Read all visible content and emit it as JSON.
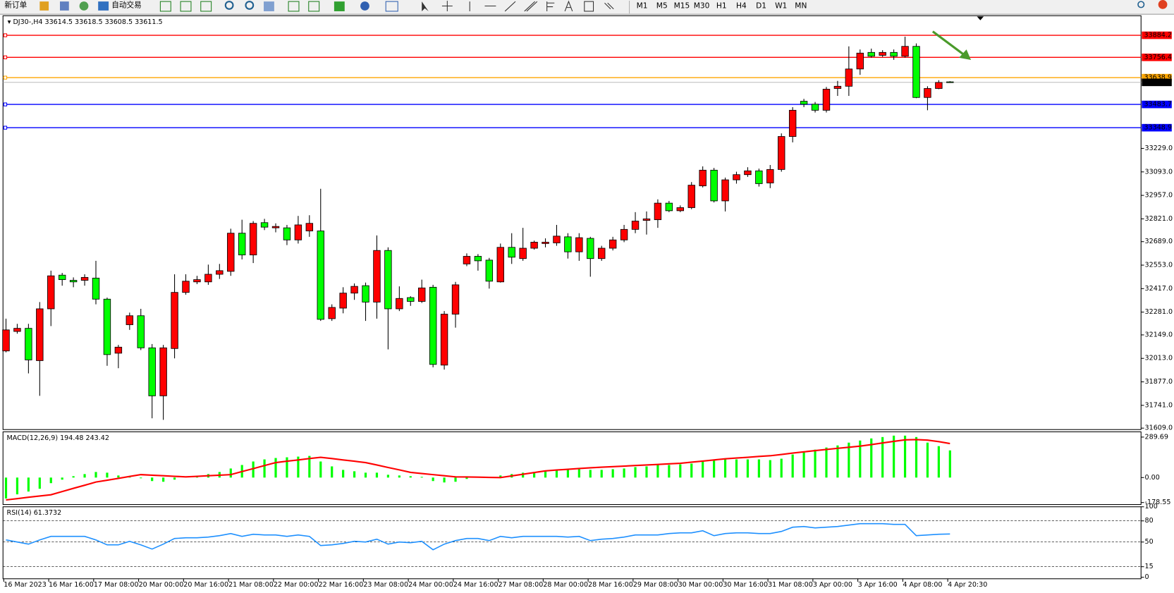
{
  "toolbar": {
    "new_order": "新订单",
    "auto_trading": "自动交易",
    "timeframes": [
      "M1",
      "M5",
      "M15",
      "M30",
      "H1",
      "H4",
      "D1",
      "W1",
      "MN"
    ]
  },
  "chart_data": [
    {
      "type": "candlestick",
      "symbol": "DJ30-,H4",
      "categories": [
        "16 Mar 2023",
        null,
        null,
        null,
        "16 Mar 16:00",
        null,
        null,
        null,
        "17 Mar 08:00",
        null,
        null,
        null,
        "20 Mar 00:00",
        null,
        null,
        null,
        "20 Mar 16:00",
        null,
        null,
        null,
        "21 Mar 08:00",
        null,
        null,
        null,
        "22 Mar 00:00",
        null,
        null,
        null,
        "22 Mar 16:00",
        null,
        null,
        null,
        "23 Mar 08:00",
        null,
        null,
        null,
        "24 Mar 00:00",
        null,
        null,
        null,
        "24 Mar 16:00",
        null,
        null,
        null,
        "27 Mar 08:00",
        null,
        null,
        null,
        "28 Mar 00:00",
        null,
        null,
        null,
        "28 Mar 16:00",
        null,
        null,
        null,
        "29 Mar 08:00",
        null,
        null,
        null,
        "30 Mar 00:00",
        null,
        null,
        null,
        "30 Mar 16:00",
        null,
        null,
        null,
        "31 Mar 08:00",
        null,
        null,
        null,
        "3 Apr 00:00",
        null,
        null,
        null,
        "3 Apr 16:00",
        null,
        null,
        null,
        "4 Apr 08:00",
        null,
        null,
        null,
        "4 Apr 20:30"
      ],
      "open": [
        32056,
        32169,
        32187,
        32000,
        32300,
        32495,
        32465,
        32465,
        32478,
        32356,
        32043,
        32208,
        32260,
        32074,
        31796,
        32070,
        32395,
        32456,
        32456,
        32500,
        32517,
        32738,
        32612,
        32799,
        32769,
        32769,
        32699,
        32751,
        32751,
        32243,
        32304,
        32391,
        32434,
        32339,
        32638,
        32300,
        32365,
        32343,
        32425,
        31974,
        32269,
        32560,
        32604,
        32582,
        32456,
        32656,
        32591,
        32651,
        32678,
        32682,
        32717,
        32630,
        32708,
        32591,
        32651,
        32699,
        32760,
        32812,
        32816,
        32912,
        32868,
        32886,
        33012,
        33103,
        32925,
        33047,
        33077,
        33099,
        33029,
        33107,
        33298,
        33502,
        33485,
        33450,
        33576,
        33589,
        33689,
        33785,
        33768,
        33785,
        33763,
        33820,
        33524,
        33576,
        33614.5
      ],
      "high": [
        32243,
        32213,
        32213,
        32339,
        32521,
        32508,
        32482,
        32500,
        32578,
        32365,
        32091,
        32278,
        32300,
        32096,
        32091,
        32500,
        32500,
        32491,
        32556,
        32560,
        32764,
        32816,
        32808,
        32821,
        32795,
        32786,
        32838,
        32842,
        32995,
        32326,
        32425,
        32447,
        32452,
        32725,
        32656,
        32430,
        32373,
        32469,
        32439,
        32287,
        32456,
        32621,
        32617,
        32595,
        32678,
        32738,
        32769,
        32695,
        32708,
        32786,
        32738,
        32738,
        32717,
        32665,
        32717,
        32786,
        32860,
        32864,
        32934,
        32925,
        32899,
        33034,
        33125,
        33116,
        33060,
        33094,
        33120,
        33112,
        33133,
        33316,
        33468,
        33516,
        33498,
        33585,
        33620,
        33820,
        33802,
        33807,
        33798,
        33802,
        33876,
        33837,
        33589,
        33624,
        33618.5
      ],
      "low": [
        32048,
        32156,
        31926,
        31796,
        32200,
        32434,
        32425,
        32434,
        32326,
        31970,
        31956,
        32178,
        32061,
        31666,
        31657,
        32013,
        32382,
        32443,
        32439,
        32473,
        32491,
        32586,
        32565,
        32756,
        32743,
        32669,
        32678,
        32717,
        32230,
        32230,
        32274,
        32352,
        32230,
        32243,
        32065,
        32287,
        32317,
        32334,
        31961,
        31948,
        32191,
        32547,
        32521,
        32417,
        32452,
        32560,
        32578,
        32643,
        32656,
        32665,
        32591,
        32578,
        32486,
        32578,
        32638,
        32686,
        32738,
        32730,
        32769,
        32860,
        32860,
        32877,
        33003,
        32916,
        32864,
        33025,
        33064,
        33008,
        32999,
        33094,
        33264,
        33468,
        33437,
        33437,
        33533,
        33533,
        33655,
        33755,
        33759,
        33742,
        33755,
        33520,
        33450,
        33572,
        33608.5
      ],
      "close": [
        32178,
        32187,
        32004,
        32300,
        32491,
        32469,
        32456,
        32482,
        32356,
        32035,
        32078,
        32260,
        32074,
        31796,
        32074,
        32395,
        32460,
        32469,
        32500,
        32521,
        32738,
        32612,
        32795,
        32773,
        32777,
        32699,
        32786,
        32795,
        32239,
        32308,
        32391,
        32430,
        32339,
        32638,
        32300,
        32360,
        32343,
        32421,
        31978,
        32269,
        32439,
        32604,
        32578,
        32460,
        32656,
        32599,
        32651,
        32686,
        32686,
        32721,
        32630,
        32712,
        32591,
        32651,
        32699,
        32760,
        32808,
        32821,
        32912,
        32868,
        32886,
        33016,
        33103,
        32925,
        33047,
        33077,
        33099,
        33025,
        33107,
        33298,
        33450,
        33485,
        33450,
        33572,
        33589,
        33689,
        33781,
        33763,
        33785,
        33763,
        33820,
        33524,
        33576,
        33611,
        33611.5
      ],
      "up_color": "#ff0000",
      "down_color": "#00ff00",
      "ylim": [
        31605,
        33993
      ],
      "yticks": [
        {
          "value": 33229,
          "label": "33229.0"
        },
        {
          "value": 33093,
          "label": "33093.0"
        },
        {
          "value": 32957,
          "label": "32957.0"
        },
        {
          "value": 32821,
          "label": "32821.0"
        },
        {
          "value": 32689,
          "label": "32689.0"
        },
        {
          "value": 32553,
          "label": "32553.0"
        },
        {
          "value": 32417,
          "label": "32417.0"
        },
        {
          "value": 32281,
          "label": "32281.0"
        },
        {
          "value": 32149,
          "label": "32149.0"
        },
        {
          "value": 32013,
          "label": "32013.0"
        },
        {
          "value": 31877,
          "label": "31877.0"
        },
        {
          "value": 31741,
          "label": "31741.0"
        },
        {
          "value": 31609,
          "label": "31609.0"
        }
      ],
      "levels": [
        {
          "value": 33884.2,
          "color": "#ff0000"
        },
        {
          "value": 33756.4,
          "color": "#ff0000"
        },
        {
          "value": 33638.9,
          "color": "#ffa500"
        },
        {
          "value": 33483.7,
          "color": "#0000ff"
        },
        {
          "value": 33348.9,
          "color": "#0000ff"
        }
      ]
    },
    {
      "type": "macd",
      "name": "MACD(12,26,9)",
      "values": [
        -150,
        -120,
        -100,
        -80,
        -40,
        -15,
        10,
        25,
        40,
        35,
        15,
        5,
        -5,
        -25,
        -30,
        -15,
        0,
        10,
        25,
        40,
        65,
        90,
        115,
        130,
        140,
        145,
        150,
        155,
        115,
        80,
        55,
        45,
        35,
        35,
        20,
        15,
        10,
        5,
        -25,
        -35,
        -30,
        -10,
        5,
        5,
        15,
        25,
        35,
        40,
        45,
        55,
        55,
        60,
        55,
        55,
        60,
        65,
        75,
        80,
        90,
        90,
        95,
        100,
        120,
        130,
        130,
        130,
        130,
        130,
        125,
        135,
        165,
        180,
        200,
        215,
        230,
        250,
        265,
        280,
        290,
        300,
        300,
        290,
        250,
        225,
        194.48
      ],
      "signal": [
        -160,
        -151,
        -141,
        -132,
        -123,
        -100,
        -77,
        -55,
        -32,
        -19,
        -6,
        8,
        21,
        17,
        13,
        9,
        5,
        9,
        13,
        17,
        21,
        43,
        64,
        86,
        107,
        117,
        126,
        136,
        145,
        136,
        126,
        117,
        107,
        90,
        72,
        55,
        37,
        29,
        21,
        13,
        5,
        4,
        3,
        1,
        0,
        12,
        24,
        36,
        48,
        54,
        59,
        65,
        70,
        74,
        78,
        82,
        86,
        90,
        94,
        98,
        102,
        110,
        118,
        126,
        134,
        140,
        145,
        151,
        156,
        165,
        175,
        184,
        193,
        201,
        209,
        217,
        225,
        236,
        248,
        259,
        270,
        272,
        268,
        257,
        243.42
      ],
      "color": "#00ff00",
      "signal_color": "#ff0000",
      "ylim": [
        -193,
        322
      ],
      "yticks": [
        289.69,
        {
          "value": 0,
          "label": "0.00"
        },
        -178.55
      ]
    },
    {
      "type": "line",
      "name": "RSI(14)",
      "values": [
        53,
        50,
        47,
        53,
        58,
        58,
        58,
        58,
        53,
        46,
        46,
        51,
        46,
        40,
        47,
        55,
        56,
        56,
        57,
        59,
        62,
        58,
        61,
        60,
        60,
        58,
        60,
        58,
        45,
        46,
        48,
        51,
        50,
        54,
        47,
        50,
        49,
        51,
        39,
        47,
        52,
        55,
        55,
        52,
        58,
        56,
        58,
        58,
        58,
        58,
        57,
        58,
        52,
        54,
        55,
        57,
        60,
        60,
        60,
        62,
        63,
        63,
        66,
        59,
        62,
        63,
        63,
        62,
        62,
        65,
        71,
        72,
        70,
        71,
        72,
        74,
        76,
        76,
        76,
        75,
        75,
        59,
        60,
        61,
        61.3732
      ],
      "color": "#1e90ff",
      "ylim": [
        0,
        100
      ],
      "yticks": [
        100,
        80,
        50,
        15,
        0
      ],
      "grid": "dashed"
    }
  ]
}
